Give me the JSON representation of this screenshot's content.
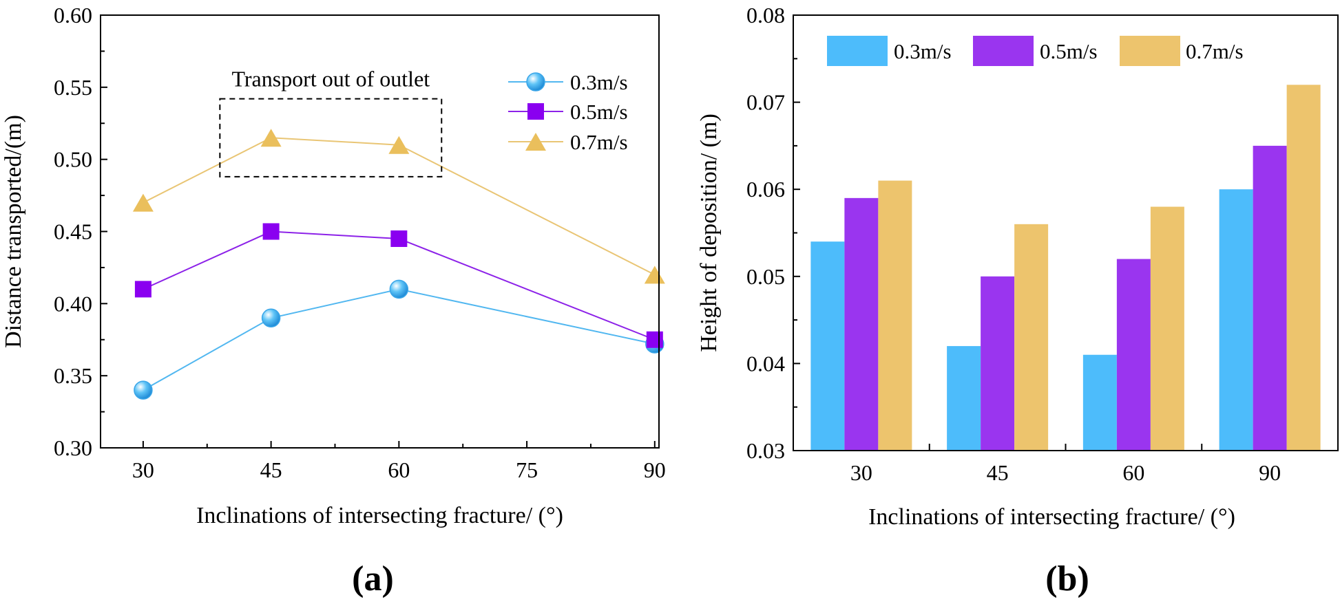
{
  "colors": {
    "s03": "#4dbcfb",
    "s05": "#9a35ef",
    "s07": "#edc46d",
    "s03_line": "#51b7f0",
    "s05_line": "#8c21e8",
    "s07_line": "#e9c574",
    "s05_marker": "#8a00f0",
    "s07_marker": "#eabf5c"
  },
  "chart_data": [
    {
      "id": "a",
      "type": "line",
      "panel_label": "(a)",
      "xlabel": "Inclinations of intersecting fracture/ (°)",
      "ylabel": "Distance transported/(m)",
      "x": [
        30,
        45,
        60,
        90
      ],
      "xlim": [
        25,
        90.5
      ],
      "ylim": [
        0.3,
        0.6
      ],
      "xticks": [
        30,
        45,
        60,
        75,
        90
      ],
      "xtick_labels": [
        "30",
        "45",
        "60",
        "75",
        "90"
      ],
      "yticks": [
        0.3,
        0.35,
        0.4,
        0.45,
        0.5,
        0.55,
        0.6
      ],
      "ytick_labels": [
        "0.30",
        "0.35",
        "0.40",
        "0.45",
        "0.50",
        "0.55",
        "0.60"
      ],
      "series": [
        {
          "name": "0.3m/s",
          "marker": "sphere",
          "values": [
            0.34,
            0.39,
            0.41,
            0.372
          ]
        },
        {
          "name": "0.5m/s",
          "marker": "square",
          "values": [
            0.41,
            0.45,
            0.445,
            0.375
          ]
        },
        {
          "name": "0.7m/s",
          "marker": "triangle",
          "values": [
            0.47,
            0.515,
            0.51,
            0.42
          ]
        }
      ],
      "legend_position": "top-right",
      "annotation": {
        "text": "Transport out of outlet",
        "box_x": [
          39,
          65
        ],
        "box_y": [
          0.488,
          0.542
        ]
      }
    },
    {
      "id": "b",
      "type": "bar",
      "panel_label": "(b)",
      "xlabel": "Inclinations of intersecting fracture/ (°)",
      "ylabel": "Height of deposition/ (m)",
      "categories": [
        "30",
        "45",
        "60",
        "90"
      ],
      "ylim": [
        0.03,
        0.08
      ],
      "yticks": [
        0.03,
        0.04,
        0.05,
        0.06,
        0.07,
        0.08
      ],
      "ytick_labels": [
        "0.03",
        "0.04",
        "0.05",
        "0.06",
        "0.07",
        "0.08"
      ],
      "series": [
        {
          "name": "0.3m/s",
          "values": [
            0.054,
            0.042,
            0.041,
            0.06
          ]
        },
        {
          "name": "0.5m/s",
          "values": [
            0.059,
            0.05,
            0.052,
            0.065
          ]
        },
        {
          "name": "0.7m/s",
          "values": [
            0.061,
            0.056,
            0.058,
            0.072
          ]
        }
      ],
      "legend_position": "top-left"
    }
  ]
}
